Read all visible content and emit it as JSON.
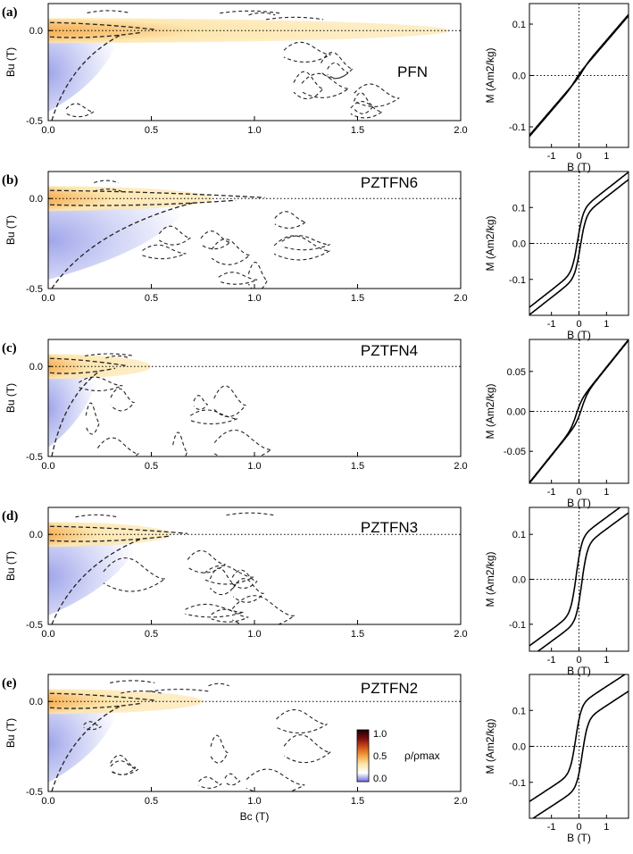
{
  "chart_data": [
    {
      "panel": "(a)",
      "type": "heatmap",
      "sample": "PFN",
      "xlabel": "",
      "ylabel": "Bu (T)",
      "xlim": [
        0,
        2.0
      ],
      "ylim": [
        -0.5,
        0.15
      ],
      "xticks": [
        "0.0",
        "0.5",
        "1.0",
        "1.5",
        "2.0"
      ],
      "yticks": [
        "0.0",
        "-0.5"
      ],
      "ridge_extent_bc": 1.95,
      "negative_region_extent_bc": 0.35,
      "loop": {
        "type": "line",
        "xlabel": "B (T)",
        "ylabel": "M (Am2/kg)",
        "xlim": [
          -1.8,
          1.8
        ],
        "ylim": [
          -0.14,
          0.14
        ],
        "xticks": [
          "-1",
          "0",
          "1"
        ],
        "yticks": [
          "0.1",
          "0.0",
          "-0.1"
        ],
        "ms": 0.005,
        "mrs": 0.002,
        "bc": 0.15,
        "chi": 0.0625
      }
    },
    {
      "panel": "(b)",
      "type": "heatmap",
      "sample": "PZTFN6",
      "xlabel": "",
      "ylabel": "Bu (T)",
      "xlim": [
        0,
        2.0
      ],
      "ylim": [
        -0.5,
        0.15
      ],
      "xticks": [
        "0.0",
        "0.5",
        "1.0",
        "1.5",
        "2.0"
      ],
      "yticks": [
        "0.0",
        "-0.5"
      ],
      "ridge_extent_bc": 0.8,
      "negative_region_extent_bc": 0.7,
      "loop": {
        "type": "line",
        "xlabel": "B (T)",
        "ylabel": "M (Am2/kg)",
        "xlim": [
          -1.8,
          1.8
        ],
        "ylim": [
          -0.2,
          0.2
        ],
        "xticks": [
          "-1",
          "0",
          "1"
        ],
        "yticks": [
          "0.1",
          "0.0",
          "-0.1"
        ],
        "ms": 0.08,
        "mrs": 0.03,
        "bc": 0.05,
        "chi": 0.06
      }
    },
    {
      "panel": "(c)",
      "type": "heatmap",
      "sample": "PZTFN4",
      "xlabel": "",
      "ylabel": "Bu (T)",
      "xlim": [
        0,
        2.0
      ],
      "ylim": [
        -0.5,
        0.15
      ],
      "xticks": [
        "0.0",
        "0.5",
        "1.0",
        "1.5",
        "2.0"
      ],
      "yticks": [
        "0.0",
        "-0.5"
      ],
      "ridge_extent_bc": 0.5,
      "negative_region_extent_bc": 0.25,
      "loop": {
        "type": "line",
        "xlabel": "B (T)",
        "ylabel": "M (Am2/kg)",
        "xlim": [
          -1.8,
          1.8
        ],
        "ylim": [
          -0.09,
          0.09
        ],
        "xticks": [
          "-1",
          "0",
          "1"
        ],
        "yticks": [
          "0.05",
          "0.00",
          "-0.05"
        ],
        "ms": 0.012,
        "mrs": 0.006,
        "bc": 0.1,
        "chi": 0.043
      }
    },
    {
      "panel": "(d)",
      "type": "heatmap",
      "sample": "PZTFN3",
      "xlabel": "",
      "ylabel": "Bu (T)",
      "xlim": [
        0,
        2.0
      ],
      "ylim": [
        -0.5,
        0.15
      ],
      "xticks": [
        "0.0",
        "0.5",
        "1.0",
        "1.5",
        "2.0"
      ],
      "yticks": [
        "0.0",
        "-0.5"
      ],
      "ridge_extent_bc": 0.6,
      "negative_region_extent_bc": 0.45,
      "loop": {
        "type": "line",
        "xlabel": "B (T)",
        "ylabel": "M (Am2/kg)",
        "xlim": [
          -1.8,
          1.8
        ],
        "ylim": [
          -0.16,
          0.16
        ],
        "xticks": [
          "-1",
          "0",
          "1"
        ],
        "yticks": [
          "0.1",
          "0.0",
          "-0.1"
        ],
        "ms": 0.08,
        "mrs": 0.05,
        "bc": 0.1,
        "chi": 0.045
      }
    },
    {
      "panel": "(e)",
      "type": "heatmap",
      "sample": "PZTFN2",
      "xlabel": "Bc (T)",
      "ylabel": "Bu (T)",
      "xlim": [
        0,
        2.0
      ],
      "ylim": [
        -0.5,
        0.15
      ],
      "xticks": [
        "0.0",
        "0.5",
        "1.0",
        "1.5",
        "2.0"
      ],
      "yticks": [
        "0.0",
        "-0.5"
      ],
      "ridge_extent_bc": 0.75,
      "negative_region_extent_bc": 0.35,
      "colorbar": {
        "label": "ρ/ρmax",
        "ticks": [
          "1.0",
          "0.5",
          "0.0"
        ],
        "colors": [
          "#6a6ae0",
          "#ffffff",
          "#fde7b0",
          "#f4a340",
          "#d0501a",
          "#7a0e0e",
          "#1a0000"
        ]
      },
      "loop": {
        "type": "line",
        "xlabel": "B (T)",
        "ylabel": "M (Am2/kg)",
        "xlim": [
          -1.8,
          1.8
        ],
        "ylim": [
          -0.2,
          0.2
        ],
        "xticks": [
          "-1",
          "0",
          "1"
        ],
        "yticks": [
          "0.1",
          "0.0",
          "-0.1"
        ],
        "ms": 0.09,
        "mrs": 0.075,
        "bc": 0.12,
        "chi": 0.05
      }
    }
  ],
  "colors": {
    "ridge_core": "#1a0000",
    "ridge_mid": "#c8401a",
    "ridge_outer": "#f4a340",
    "ridge_halo": "#fde7b0",
    "negative": "#c9cdf4",
    "contour": "#222222"
  }
}
